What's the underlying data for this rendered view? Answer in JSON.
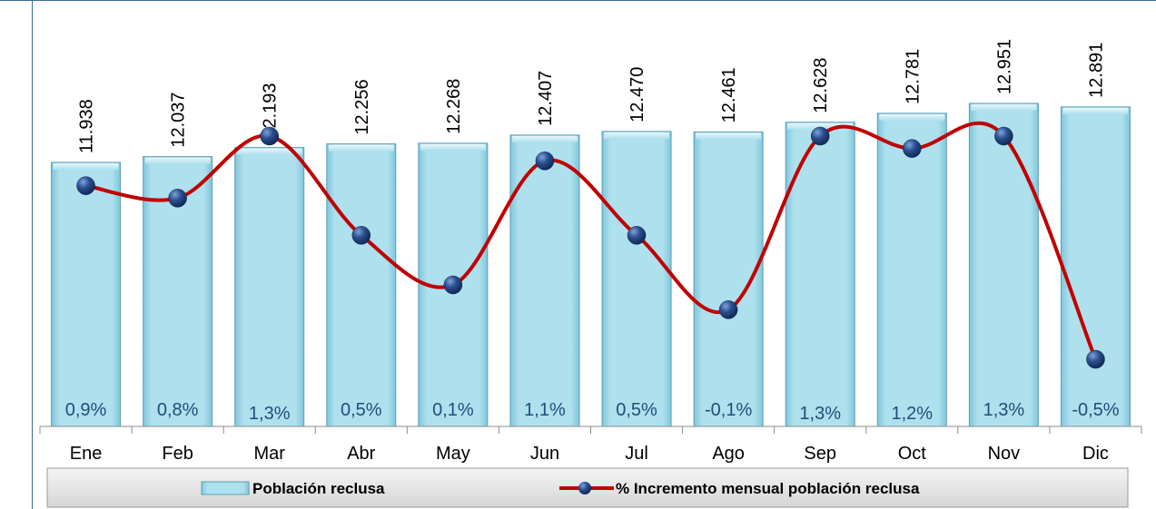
{
  "chart_data": {
    "type": "bar",
    "categories": [
      "Ene",
      "Feb",
      "Mar",
      "Abr",
      "May",
      "Jun",
      "Jul",
      "Ago",
      "Sep",
      "Oct",
      "Nov",
      "Dic"
    ],
    "series": [
      {
        "name": "Población reclusa",
        "type": "bar",
        "values": [
          11938,
          12037,
          12193,
          12256,
          12268,
          12407,
          12470,
          12461,
          12628,
          12781,
          12951,
          12891
        ],
        "labels": [
          "11.938",
          "12.037",
          "12.193",
          "12.256",
          "12.268",
          "12.407",
          "12.470",
          "12.461",
          "12.628",
          "12.781",
          "12.951",
          "12.891"
        ],
        "color": "#a8dcea"
      },
      {
        "name": "% Incremento mensual población reclusa",
        "type": "line",
        "values": [
          0.9,
          0.8,
          1.3,
          0.5,
          0.1,
          1.1,
          0.5,
          -0.1,
          1.3,
          1.2,
          1.3,
          -0.5
        ],
        "labels": [
          "0,9%",
          "0,8%",
          "1,3%",
          "0,5%",
          "0,1%",
          "1,1%",
          "0,5%",
          "-0,1%",
          "1,3%",
          "1,2%",
          "1,3%",
          "-0,5%"
        ],
        "color": "#c00000",
        "marker_color": "#1f3f7a"
      }
    ],
    "legend_position": "bottom",
    "grid": false
  }
}
